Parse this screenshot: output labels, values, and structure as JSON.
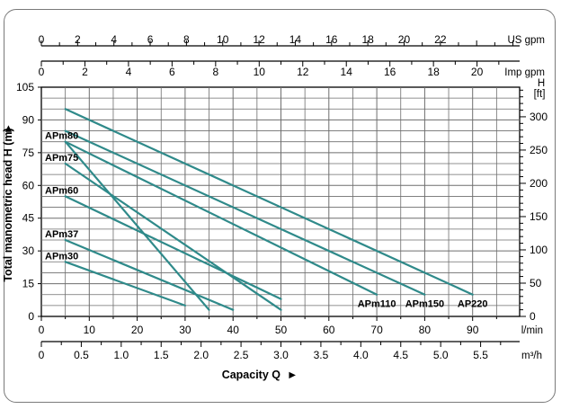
{
  "chart_data": {
    "type": "line",
    "xlabel": "Capacity Q",
    "ylabel": "Total manometric head H (m)",
    "x_unit": "l/min",
    "xlim": [
      0,
      100
    ],
    "ylim": [
      0,
      105
    ],
    "grid": true,
    "x_ticks": [
      0,
      10,
      20,
      30,
      40,
      50,
      60,
      70,
      80,
      90
    ],
    "y_ticks": [
      0,
      15,
      30,
      45,
      60,
      75,
      90,
      105
    ],
    "secondary_axes": {
      "us_gpm": {
        "unit": "US gpm",
        "ticks": [
          0,
          2,
          4,
          6,
          8,
          10,
          12,
          14,
          16,
          18,
          20,
          22
        ],
        "lpm_per_unit": 3.785
      },
      "imp_gpm": {
        "unit": "Imp gpm",
        "ticks": [
          0,
          2,
          4,
          6,
          8,
          10,
          12,
          14,
          16,
          18,
          20
        ],
        "lpm_per_unit": 4.546
      },
      "m3h": {
        "unit": "m³/h",
        "ticks": [
          "0",
          "0.5",
          "1.0",
          "1.5",
          "2.0",
          "2.5",
          "3.0",
          "3.5",
          "4.0",
          "4.5",
          "5.0",
          "5.5"
        ],
        "lpm_per_unit": 16.667
      },
      "ft": {
        "unit": "H [ft]",
        "ticks": [
          0,
          50,
          100,
          150,
          200,
          250,
          300
        ],
        "m_per_unit": 0.3048
      }
    },
    "series": [
      {
        "name": "APm30",
        "x": [
          5,
          30
        ],
        "y": [
          25,
          5
        ]
      },
      {
        "name": "APm37",
        "x": [
          5,
          40
        ],
        "y": [
          35,
          3
        ]
      },
      {
        "name": "APm60",
        "x": [
          5,
          50
        ],
        "y": [
          55,
          8
        ]
      },
      {
        "name": "APm75",
        "x": [
          5,
          50
        ],
        "y": [
          70,
          3
        ]
      },
      {
        "name": "APm80",
        "x": [
          5,
          35
        ],
        "y": [
          80,
          3
        ]
      },
      {
        "name": "APm110",
        "x": [
          5,
          70
        ],
        "y": [
          80,
          10
        ]
      },
      {
        "name": "APm150",
        "x": [
          5,
          80
        ],
        "y": [
          85,
          10
        ]
      },
      {
        "name": "AP220",
        "x": [
          5,
          90
        ],
        "y": [
          95,
          10
        ]
      }
    ]
  },
  "style": {
    "line_color": "#2f8a8a",
    "grid_color": "#6e6e6e"
  }
}
